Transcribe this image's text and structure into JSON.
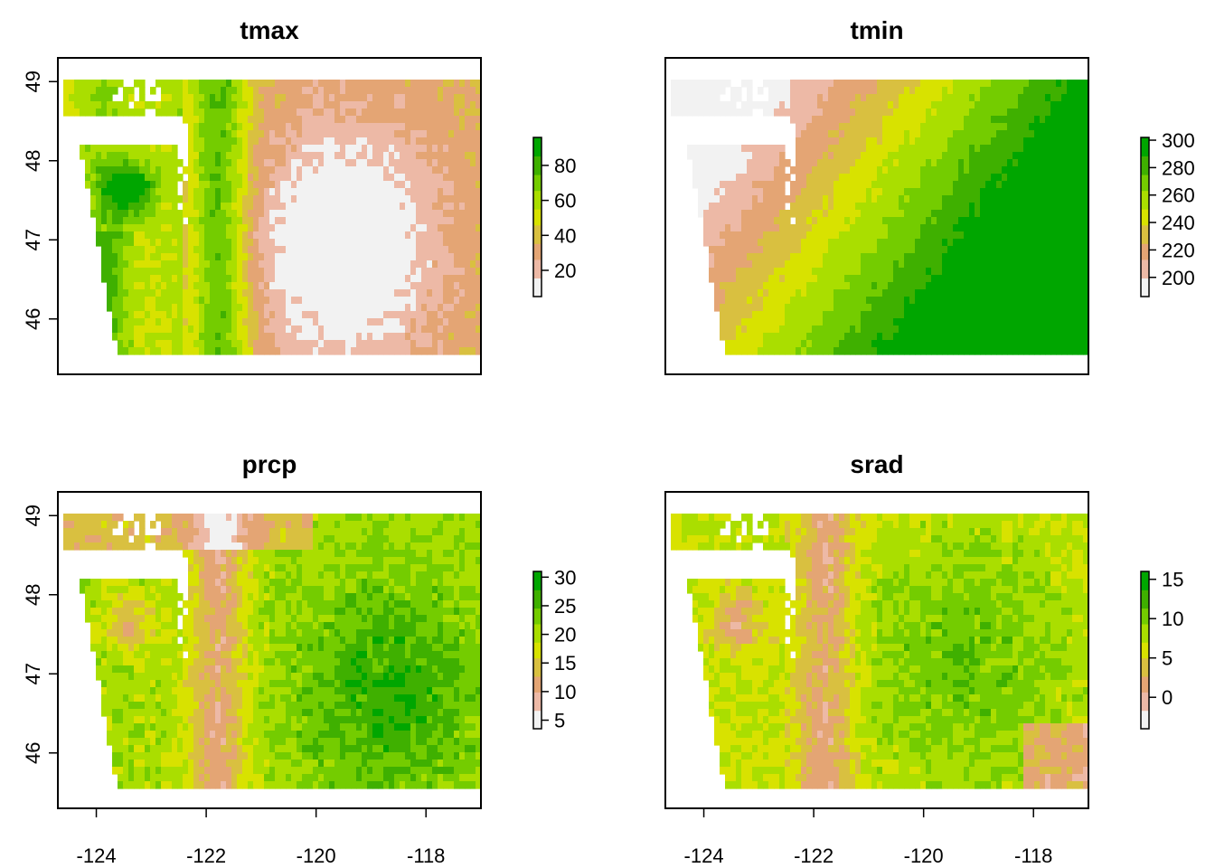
{
  "chart_data": [
    {
      "type": "heatmap",
      "title": "tmax",
      "xlim": [
        -124.7,
        -117.0
      ],
      "ylim": [
        45.3,
        49.3
      ],
      "x_ticks": [],
      "y_ticks": [
        {
          "v": 46,
          "label": "46"
        },
        {
          "v": 47,
          "label": "47"
        },
        {
          "v": 48,
          "label": "48"
        },
        {
          "v": 49,
          "label": "49"
        }
      ],
      "legend": {
        "position": "right",
        "range": [
          5,
          96
        ],
        "ticks": [
          {
            "v": 20,
            "label": "20"
          },
          {
            "v": 40,
            "label": "40"
          },
          {
            "v": 60,
            "label": "60"
          },
          {
            "v": 80,
            "label": "80"
          }
        ]
      },
      "palette": [
        "#f2f2f2",
        "#edb9a6",
        "#e4a574",
        "#d9c040",
        "#d8e200",
        "#aade00",
        "#74cc00",
        "#3fb000",
        "#00a600"
      ]
    },
    {
      "type": "heatmap",
      "title": "tmin",
      "xlim": [
        -124.7,
        -117.0
      ],
      "ylim": [
        45.3,
        49.3
      ],
      "x_ticks": [],
      "y_ticks": [],
      "legend": {
        "position": "right",
        "range": [
          186,
          302
        ],
        "ticks": [
          {
            "v": 200,
            "label": "200"
          },
          {
            "v": 220,
            "label": "220"
          },
          {
            "v": 240,
            "label": "240"
          },
          {
            "v": 260,
            "label": "260"
          },
          {
            "v": 280,
            "label": "280"
          },
          {
            "v": 300,
            "label": "300"
          }
        ]
      },
      "palette": [
        "#f2f2f2",
        "#edb9a6",
        "#e4a574",
        "#d9c040",
        "#d8e200",
        "#aade00",
        "#74cc00",
        "#3fb000",
        "#00a600"
      ]
    },
    {
      "type": "heatmap",
      "title": "prcp",
      "xlim": [
        -124.7,
        -117.0
      ],
      "ylim": [
        45.3,
        49.3
      ],
      "x_ticks": [
        {
          "v": -124,
          "label": "-124"
        },
        {
          "v": -122,
          "label": "-122"
        },
        {
          "v": -120,
          "label": "-120"
        },
        {
          "v": -118,
          "label": "-118"
        }
      ],
      "y_ticks": [
        {
          "v": 46,
          "label": "46"
        },
        {
          "v": 47,
          "label": "47"
        },
        {
          "v": 48,
          "label": "48"
        },
        {
          "v": 49,
          "label": "49"
        }
      ],
      "legend": {
        "position": "right",
        "range": [
          3.5,
          31
        ],
        "ticks": [
          {
            "v": 5,
            "label": "5"
          },
          {
            "v": 10,
            "label": "10"
          },
          {
            "v": 15,
            "label": "15"
          },
          {
            "v": 20,
            "label": "20"
          },
          {
            "v": 25,
            "label": "25"
          },
          {
            "v": 30,
            "label": "30"
          }
        ]
      },
      "palette": [
        "#f2f2f2",
        "#edb9a6",
        "#e4a574",
        "#d9c040",
        "#d8e200",
        "#aade00",
        "#74cc00",
        "#3fb000",
        "#00a600"
      ]
    },
    {
      "type": "heatmap",
      "title": "srad",
      "xlim": [
        -124.7,
        -117.0
      ],
      "ylim": [
        45.3,
        49.3
      ],
      "x_ticks": [
        {
          "v": -124,
          "label": "-124"
        },
        {
          "v": -122,
          "label": "-122"
        },
        {
          "v": -120,
          "label": "-120"
        },
        {
          "v": -118,
          "label": "-118"
        }
      ],
      "y_ticks": [],
      "legend": {
        "position": "right",
        "range": [
          -4,
          16
        ],
        "ticks": [
          {
            "v": 0,
            "label": "0"
          },
          {
            "v": 5,
            "label": "5"
          },
          {
            "v": 10,
            "label": "10"
          },
          {
            "v": 15,
            "label": "15"
          }
        ]
      },
      "palette": [
        "#f2f2f2",
        "#edb9a6",
        "#e4a574",
        "#d9c040",
        "#d8e200",
        "#aade00",
        "#74cc00",
        "#3fb000",
        "#00a600"
      ]
    }
  ]
}
